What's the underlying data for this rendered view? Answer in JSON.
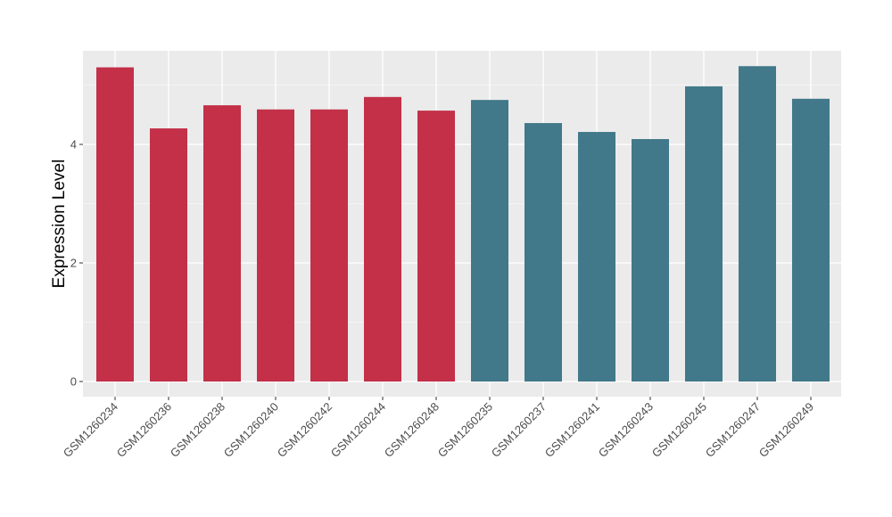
{
  "chart_data": {
    "type": "bar",
    "title": "",
    "xlabel": "",
    "ylabel": "Expression Level",
    "ylim": [
      0,
      5.5
    ],
    "yticks": [
      0,
      2,
      4
    ],
    "grid": true,
    "legend": "none",
    "categories": [
      "GSM1260234",
      "GSM1260236",
      "GSM1260238",
      "GSM1260240",
      "GSM1260242",
      "GSM1260244",
      "GSM1260248",
      "GSM1260235",
      "GSM1260237",
      "GSM1260241",
      "GSM1260243",
      "GSM1260245",
      "GSM1260247",
      "GSM1260249"
    ],
    "values": [
      5.3,
      4.27,
      4.66,
      4.59,
      4.59,
      4.8,
      4.57,
      4.75,
      4.36,
      4.21,
      4.09,
      4.98,
      5.32,
      4.77
    ],
    "groups": [
      "a",
      "a",
      "a",
      "a",
      "a",
      "a",
      "a",
      "b",
      "b",
      "b",
      "b",
      "b",
      "b",
      "b"
    ],
    "colors": {
      "a": "#c33048",
      "b": "#41798a",
      "panel": "#ebebeb",
      "grid": "#ffffff"
    }
  }
}
